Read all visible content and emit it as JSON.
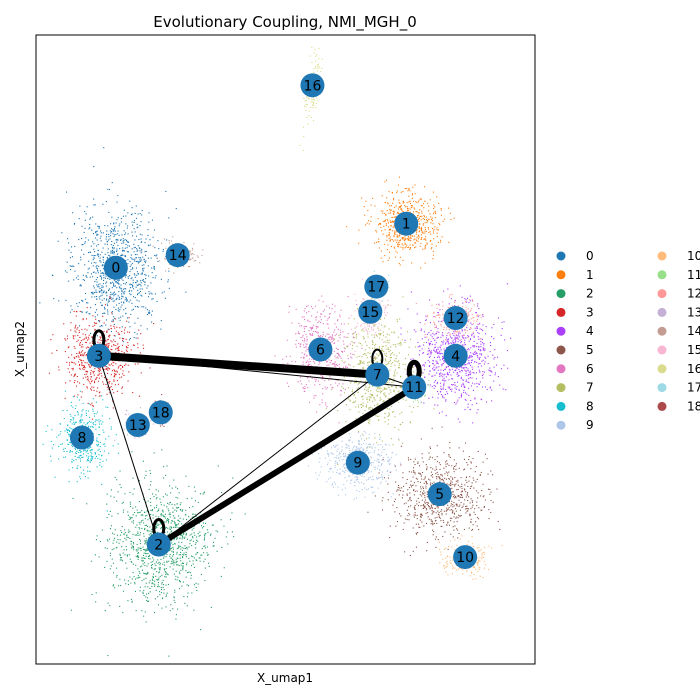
{
  "chart_data": {
    "type": "scatter",
    "title": "Evolutionary Coupling, NMI_MGH_0",
    "xlabel": "X_umap1",
    "ylabel": "X_umap2",
    "xticks": false,
    "yticks": false,
    "legend_position": "right",
    "legend_columns": 2,
    "node_color": "#1f77b4",
    "edge_color": "#000000",
    "clusters": [
      {
        "label": "0",
        "color": "#1f77b4",
        "x": 1.6,
        "y": 6.3
      },
      {
        "label": "1",
        "color": "#ff7f0e",
        "x": 7.42,
        "y": 7.0
      },
      {
        "label": "2",
        "color": "#279e68",
        "x": 2.46,
        "y": 1.9
      },
      {
        "label": "3",
        "color": "#d62728",
        "x": 1.26,
        "y": 4.9
      },
      {
        "label": "4",
        "color": "#aa40fc",
        "x": 8.41,
        "y": 4.9
      },
      {
        "label": "5",
        "color": "#8c564b",
        "x": 8.09,
        "y": 2.7
      },
      {
        "label": "6",
        "color": "#e377c2",
        "x": 5.7,
        "y": 5.0
      },
      {
        "label": "7",
        "color": "#b5bd61",
        "x": 6.84,
        "y": 4.6
      },
      {
        "label": "8",
        "color": "#17becf",
        "x": 0.92,
        "y": 3.6
      },
      {
        "label": "9",
        "color": "#aec7e8",
        "x": 6.45,
        "y": 3.2
      },
      {
        "label": "10",
        "color": "#ffbb78",
        "x": 8.6,
        "y": 1.7
      },
      {
        "label": "11",
        "color": "#98df8a",
        "x": 7.58,
        "y": 4.4
      },
      {
        "label": "12",
        "color": "#ff9896",
        "x": 8.41,
        "y": 5.5
      },
      {
        "label": "13",
        "color": "#c5b0d5",
        "x": 2.04,
        "y": 3.8
      },
      {
        "label": "14",
        "color": "#c49c94",
        "x": 2.84,
        "y": 6.5
      },
      {
        "label": "15",
        "color": "#f7b6d2",
        "x": 6.7,
        "y": 5.6
      },
      {
        "label": "16",
        "color": "#dbdb8d",
        "x": 5.54,
        "y": 9.2
      },
      {
        "label": "17",
        "color": "#9edae5",
        "x": 6.82,
        "y": 6.0
      },
      {
        "label": "18",
        "color": "#ad494a",
        "x": 2.5,
        "y": 4.0
      }
    ],
    "edges": [
      {
        "source": "3",
        "target": "7",
        "weight": 8
      },
      {
        "source": "3",
        "target": "11",
        "weight": 1
      },
      {
        "source": "3",
        "target": "2",
        "weight": 1
      },
      {
        "source": "2",
        "target": "11",
        "weight": 6
      },
      {
        "source": "2",
        "target": "7",
        "weight": 1
      },
      {
        "source": "7",
        "target": "11",
        "weight": 1
      }
    ],
    "self_loops": [
      {
        "node": "3",
        "weight": 3
      },
      {
        "node": "7",
        "weight": 2
      },
      {
        "node": "11",
        "weight": 5
      },
      {
        "node": "2",
        "weight": 3
      }
    ],
    "xlim": [
      0,
      10
    ],
    "ylim": [
      0,
      10
    ]
  }
}
